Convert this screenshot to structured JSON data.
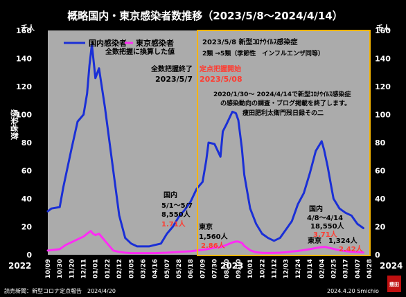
{
  "chart_data": {
    "type": "line",
    "title": "概略国内・東京感染者数推移（2023/5/8〜2024/4/14）",
    "unit_label_left": "千人",
    "unit_label_right": "千人",
    "ylabel": "感染者数",
    "ylim": [
      0,
      160
    ],
    "y_ticks": [
      0,
      20,
      40,
      60,
      80,
      100,
      120,
      140,
      160
    ],
    "grid": false,
    "background": "#ababab",
    "legend_position": "top-left",
    "year_labels": [
      "2022",
      "2023",
      "2024"
    ],
    "x_tick_labels": [
      "10/09",
      "10/30",
      "11/20",
      "12/11",
      "01/01",
      "01/22",
      "02/12",
      "03/05",
      "03/26",
      "04/16",
      "05/07",
      "05/28",
      "06/18",
      "07/09",
      "07/30",
      "08/20",
      "09/10",
      "10/01",
      "10/22",
      "11/12",
      "12/03",
      "12/24",
      "01/14",
      "02/04",
      "02/25",
      "03/17",
      "04/07",
      "04/28"
    ],
    "series": [
      {
        "name": "国内感染者",
        "note": "全数把握に換算した値",
        "color": "#1a2fd6",
        "x": [
          0,
          0.3,
          1,
          1.3,
          2,
          2.5,
          3,
          3.3,
          3.5,
          3.7,
          4,
          4.3,
          4.8,
          5.5,
          6,
          6.5,
          7,
          7.5,
          8,
          8.5,
          9,
          9.5,
          10,
          10.5,
          11,
          11.5,
          12,
          12.5,
          13,
          13.3,
          13.5,
          14,
          14.5,
          14.7,
          15,
          15.5,
          15.8,
          16,
          16.3,
          16.5,
          17,
          17.5,
          18,
          18.5,
          19,
          19.5,
          20,
          20.5,
          21,
          21.5,
          22,
          22.5,
          23,
          23.2,
          23.5,
          23.8,
          24,
          24.5,
          25,
          25.5,
          26,
          26.5
        ],
        "values": [
          31,
          33,
          34,
          48,
          76,
          95,
          100,
          115,
          135,
          150,
          126,
          133,
          105,
          60,
          28,
          12,
          8,
          6,
          6,
          6,
          7,
          8,
          15,
          20,
          27,
          32,
          38,
          47,
          52,
          67,
          80,
          79,
          70,
          88,
          93,
          102,
          101,
          96,
          76,
          57,
          33,
          22,
          15,
          12,
          10,
          12,
          18,
          24,
          36,
          44,
          58,
          74,
          81,
          75,
          63,
          49,
          40,
          33,
          30,
          28,
          22,
          19
        ]
      },
      {
        "name": "東京感染者",
        "color": "#ff2bf5",
        "x": [
          0,
          1,
          1.5,
          2,
          2.5,
          3,
          3.3,
          3.6,
          3.8,
          4,
          4.3,
          4.8,
          5.5,
          6,
          6.5,
          7,
          8,
          9,
          10,
          11,
          12,
          12.5,
          13,
          13.5,
          14,
          14.5,
          15,
          15.5,
          15.8,
          16,
          16.3,
          16.5,
          17,
          17.5,
          18,
          18.5,
          19,
          19.5,
          20,
          20.5,
          21,
          21.5,
          22,
          22.5,
          23,
          23.3,
          23.6,
          24,
          24.5,
          25,
          25.5,
          26,
          26.5
        ],
        "values": [
          3,
          4,
          7,
          9,
          11,
          13,
          15,
          17,
          15,
          14,
          15,
          10,
          3,
          2,
          1.5,
          1.2,
          1.2,
          1.2,
          1.5,
          2,
          2.5,
          3,
          3.5,
          4.2,
          5.2,
          5.4,
          7,
          8.8,
          9.5,
          9.4,
          8.5,
          6.3,
          3.2,
          1.8,
          1.4,
          1.3,
          1.4,
          1.5,
          1.8,
          2.3,
          2.7,
          3.3,
          4,
          4.8,
          5.5,
          5.6,
          5,
          4.2,
          3.2,
          2.6,
          2.1,
          1.9,
          1.6
        ]
      }
    ],
    "annotations": {
      "end_full_count_1": "全数把握終了",
      "end_full_count_2": "2023/5/7",
      "start_fixed_point_1": "定点把握開始",
      "start_fixed_point_2": "2023/5/08",
      "class_change_1": "2023/5/8 新型ｺﾛﾅｳｲﾙｽ感染症",
      "class_change_2": "2類 →5類（季節性　インフルエンザ同等）",
      "survey_end_1": "2020/1/30～ 2024/4/14で新型ｺﾛﾅｳｲﾙｽ感染症",
      "survey_end_2": "の感染動向の調査・ブログ掲載を終了します。",
      "survey_end_3": "痩田肥利太衛門残日録その二",
      "domestic_early_1": "国内",
      "domestic_early_2": "5/1～5/7",
      "domestic_early_3": "8,550人",
      "domestic_early_4": "1.71人",
      "tokyo_early_1": "東京",
      "tokyo_early_2": "1,560人",
      "tokyo_early_3": "2.86人",
      "domestic_late_1": "国内",
      "domestic_late_2": "4/8～4/14",
      "domestic_late_3": "18,550人",
      "domestic_late_4": "3.71人",
      "tokyo_late": "東京　1,324人",
      "tokyo_late_rate": "2.42人"
    },
    "footer_left": "読売新聞：新型コロナ定点報告　2024/4/20",
    "footer_right": "2024.4.20 Smichio",
    "seal_text": "痩田"
  }
}
